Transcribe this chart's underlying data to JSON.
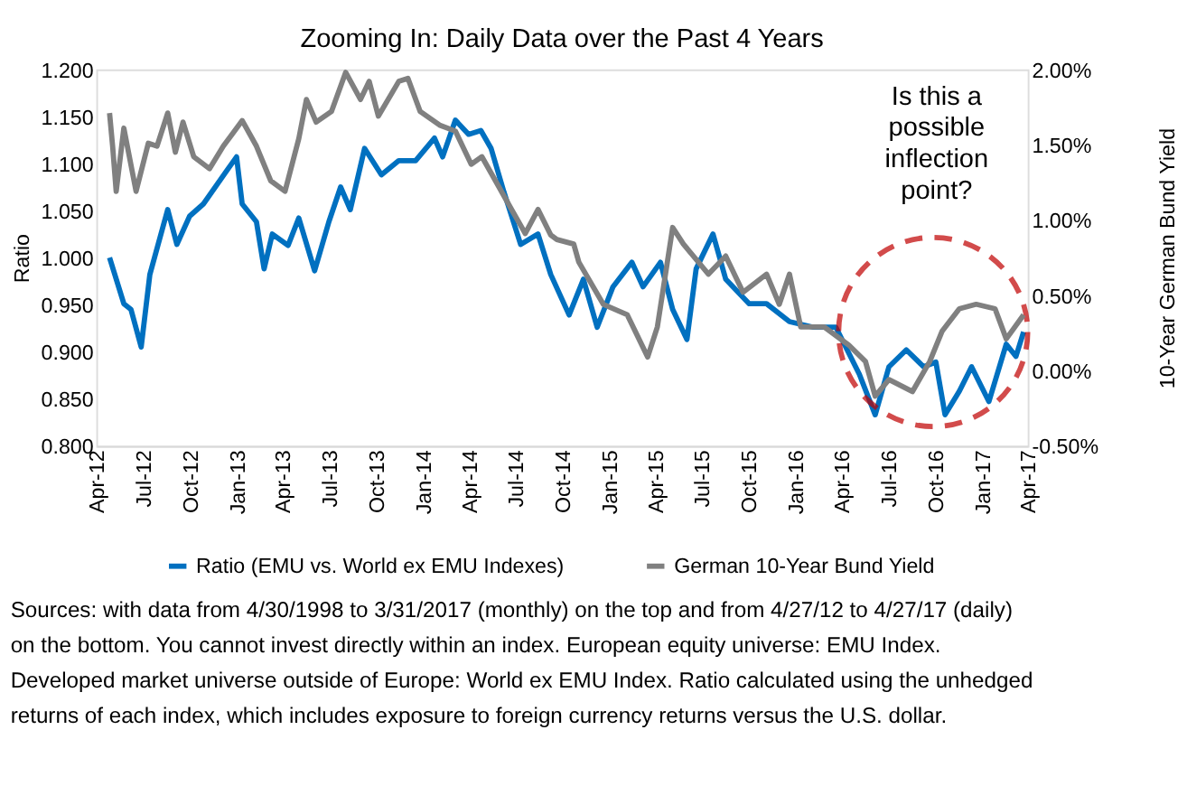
{
  "chart_data": {
    "type": "line",
    "title": "Zooming In: Daily Data over the Past 4 Years",
    "ylabel": "Ratio",
    "y2label": "10-Year German Bund Yield",
    "xlim": [
      "2012-04-01",
      "2017-04-01"
    ],
    "xticks": [
      {
        "value": "2012-04-01",
        "label": "Apr-12"
      },
      {
        "value": "2012-07-01",
        "label": "Jul-12"
      },
      {
        "value": "2012-10-01",
        "label": "Oct-12"
      },
      {
        "value": "2013-01-01",
        "label": "Jan-13"
      },
      {
        "value": "2013-04-01",
        "label": "Apr-13"
      },
      {
        "value": "2013-07-01",
        "label": "Jul-13"
      },
      {
        "value": "2013-10-01",
        "label": "Oct-13"
      },
      {
        "value": "2014-01-01",
        "label": "Jan-14"
      },
      {
        "value": "2014-04-01",
        "label": "Apr-14"
      },
      {
        "value": "2014-07-01",
        "label": "Jul-14"
      },
      {
        "value": "2014-10-01",
        "label": "Oct-14"
      },
      {
        "value": "2015-01-01",
        "label": "Jan-15"
      },
      {
        "value": "2015-04-01",
        "label": "Apr-15"
      },
      {
        "value": "2015-07-01",
        "label": "Jul-15"
      },
      {
        "value": "2015-10-01",
        "label": "Oct-15"
      },
      {
        "value": "2016-01-01",
        "label": "Jan-16"
      },
      {
        "value": "2016-04-01",
        "label": "Apr-16"
      },
      {
        "value": "2016-07-01",
        "label": "Jul-16"
      },
      {
        "value": "2016-10-01",
        "label": "Oct-16"
      },
      {
        "value": "2017-01-01",
        "label": "Jan-17"
      },
      {
        "value": "2017-04-01",
        "label": "Apr-17"
      }
    ],
    "ylim": [
      0.8,
      1.2
    ],
    "yticks": [
      {
        "value": 0.8,
        "label": "0.800"
      },
      {
        "value": 0.85,
        "label": "0.850"
      },
      {
        "value": 0.9,
        "label": "0.900"
      },
      {
        "value": 0.95,
        "label": "0.950"
      },
      {
        "value": 1.0,
        "label": "1.000"
      },
      {
        "value": 1.05,
        "label": "1.050"
      },
      {
        "value": 1.1,
        "label": "1.100"
      },
      {
        "value": 1.15,
        "label": "1.150"
      },
      {
        "value": 1.2,
        "label": "1.200"
      }
    ],
    "y2lim": [
      -0.5,
      2.0
    ],
    "y2ticks": [
      {
        "value": -0.5,
        "label": "-0.50%"
      },
      {
        "value": 0.0,
        "label": "0.00%"
      },
      {
        "value": 0.5,
        "label": "0.50%"
      },
      {
        "value": 1.0,
        "label": "1.00%"
      },
      {
        "value": 1.5,
        "label": "1.50%"
      },
      {
        "value": 2.0,
        "label": "2.00%"
      }
    ],
    "legend": "bottom",
    "marker": "none",
    "line_style": "solid",
    "series": [
      {
        "name": "Ratio (EMU vs. World ex EMU Indexes)",
        "color": "#0070c0",
        "x": [
          "2012-04-27",
          "2012-05-25",
          "2012-06-08",
          "2012-06-28",
          "2012-07-15",
          "2012-08-19",
          "2012-09-06",
          "2012-10-01",
          "2012-10-28",
          "2012-12-15",
          "2013-01-01",
          "2013-01-12",
          "2013-02-09",
          "2013-02-24",
          "2013-03-12",
          "2013-04-12",
          "2013-05-03",
          "2013-06-03",
          "2013-07-01",
          "2013-07-24",
          "2013-08-12",
          "2013-09-09",
          "2013-10-12",
          "2013-11-15",
          "2013-12-18",
          "2014-01-24",
          "2014-02-09",
          "2014-03-06",
          "2014-04-01",
          "2014-04-25",
          "2014-05-15",
          "2014-06-09",
          "2014-07-12",
          "2014-08-15",
          "2014-09-09",
          "2014-10-15",
          "2014-11-12",
          "2014-12-09",
          "2015-01-09",
          "2015-02-15",
          "2015-03-09",
          "2015-04-12",
          "2015-05-06",
          "2015-06-03",
          "2015-06-21",
          "2015-07-24",
          "2015-08-18",
          "2015-10-03",
          "2015-11-06",
          "2015-12-21",
          "2016-02-06",
          "2016-03-21",
          "2016-05-06",
          "2016-06-06",
          "2016-07-03",
          "2016-08-06",
          "2016-09-09",
          "2016-10-03",
          "2016-10-21",
          "2016-11-18",
          "2016-12-12",
          "2017-01-15",
          "2017-02-18",
          "2017-03-09",
          "2017-03-24"
        ],
        "values": [
          1.0,
          0.951,
          0.945,
          0.905,
          0.982,
          1.051,
          1.014,
          1.044,
          1.057,
          1.094,
          1.107,
          1.057,
          1.038,
          0.988,
          1.025,
          1.013,
          1.042,
          0.986,
          1.038,
          1.075,
          1.051,
          1.116,
          1.088,
          1.103,
          1.103,
          1.127,
          1.107,
          1.146,
          1.131,
          1.135,
          1.116,
          1.07,
          1.014,
          1.025,
          0.982,
          0.939,
          0.977,
          0.926,
          0.969,
          0.995,
          0.969,
          0.995,
          0.945,
          0.913,
          0.988,
          1.025,
          0.977,
          0.951,
          0.951,
          0.932,
          0.926,
          0.926,
          0.876,
          0.833,
          0.884,
          0.902,
          0.884,
          0.889,
          0.833,
          0.858,
          0.884,
          0.847,
          0.908,
          0.895,
          0.921
        ]
      },
      {
        "name": "German 10-Year Bund Yield",
        "color": "#808080",
        "axis": "y2",
        "x": [
          "2012-04-27",
          "2012-05-03",
          "2012-05-10",
          "2012-05-25",
          "2012-06-18",
          "2012-07-12",
          "2012-07-29",
          "2012-08-19",
          "2012-09-03",
          "2012-09-18",
          "2012-10-09",
          "2012-11-09",
          "2012-12-06",
          "2013-01-12",
          "2013-02-09",
          "2013-03-09",
          "2013-04-06",
          "2013-05-03",
          "2013-05-18",
          "2013-06-06",
          "2013-07-06",
          "2013-08-03",
          "2013-09-01",
          "2013-09-18",
          "2013-10-06",
          "2013-11-15",
          "2013-12-03",
          "2013-12-27",
          "2014-02-03",
          "2014-03-06",
          "2014-04-06",
          "2014-04-27",
          "2014-05-27",
          "2014-06-24",
          "2014-07-21",
          "2014-08-15",
          "2014-09-09",
          "2014-09-21",
          "2014-10-24",
          "2014-11-03",
          "2014-12-21",
          "2015-02-06",
          "2015-03-18",
          "2015-04-06",
          "2015-05-06",
          "2015-05-27",
          "2015-07-15",
          "2015-08-18",
          "2015-09-21",
          "2015-11-06",
          "2015-12-01",
          "2015-12-21",
          "2016-01-12",
          "2016-02-27",
          "2016-04-15",
          "2016-05-18",
          "2016-06-06",
          "2016-07-03",
          "2016-08-18",
          "2016-09-21",
          "2016-10-15",
          "2016-11-18",
          "2016-12-21",
          "2017-01-27",
          "2017-02-18",
          "2017-03-24"
        ],
        "values": [
          1.71,
          1.49,
          1.19,
          1.61,
          1.19,
          1.51,
          1.49,
          1.71,
          1.45,
          1.65,
          1.42,
          1.34,
          1.49,
          1.66,
          1.49,
          1.26,
          1.19,
          1.54,
          1.8,
          1.65,
          1.72,
          1.98,
          1.8,
          1.92,
          1.69,
          1.92,
          1.94,
          1.72,
          1.63,
          1.59,
          1.37,
          1.42,
          1.24,
          1.07,
          0.91,
          1.07,
          0.9,
          0.87,
          0.84,
          0.72,
          0.44,
          0.37,
          0.09,
          0.29,
          0.95,
          0.84,
          0.64,
          0.76,
          0.52,
          0.64,
          0.44,
          0.64,
          0.29,
          0.29,
          0.17,
          0.06,
          -0.17,
          -0.06,
          -0.14,
          0.06,
          0.26,
          0.41,
          0.44,
          0.41,
          0.21,
          0.37
        ]
      }
    ],
    "annotations": [
      "Is this a possible inflection point?",
      "Sources: with data from 4/30/1998 to 3/31/2017 (monthly) on the top and from 4/27/12 to 4/27/17 (daily) on the bottom. You cannot invest directly within an index. European equity universe: EMU Index. Developed market universe outside of Europe: World ex EMU Index. Ratio calculated using the unhedged returns of each index, which includes exposure to foreign currency returns versus the U.S. dollar."
    ]
  }
}
